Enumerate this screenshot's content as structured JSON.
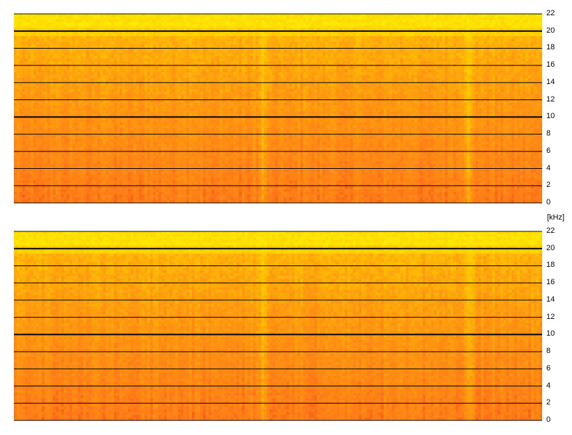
{
  "chart_data": [
    {
      "type": "heatmap",
      "channel_index": 0,
      "y_unit": "[kHz]",
      "ylim": [
        0,
        22
      ],
      "y_ticks": [
        "22",
        "20",
        "18",
        "16",
        "14",
        "12",
        "10",
        "8",
        "6",
        "4",
        "2",
        "0"
      ],
      "major_gridlines": [
        20,
        10
      ],
      "grid": true,
      "colormap": [
        "#ffea00",
        "#ffc800",
        "#ff9a10",
        "#ff7a18",
        "#f04a10"
      ],
      "quiet_columns_fraction": [
        0.47,
        0.86
      ]
    },
    {
      "type": "heatmap",
      "channel_index": 1,
      "ylim": [
        0,
        22
      ],
      "y_ticks": [
        "22",
        "20",
        "18",
        "16",
        "14",
        "12",
        "10",
        "8",
        "6",
        "4",
        "2",
        "0"
      ],
      "major_gridlines": [
        20,
        10
      ],
      "grid": true,
      "colormap": [
        "#ffea00",
        "#ffc800",
        "#ff9a10",
        "#ff7a18",
        "#f04a10"
      ],
      "quiet_columns_fraction": [
        0.47,
        0.86
      ]
    }
  ],
  "axis": {
    "unit_label": "[kHz]"
  }
}
